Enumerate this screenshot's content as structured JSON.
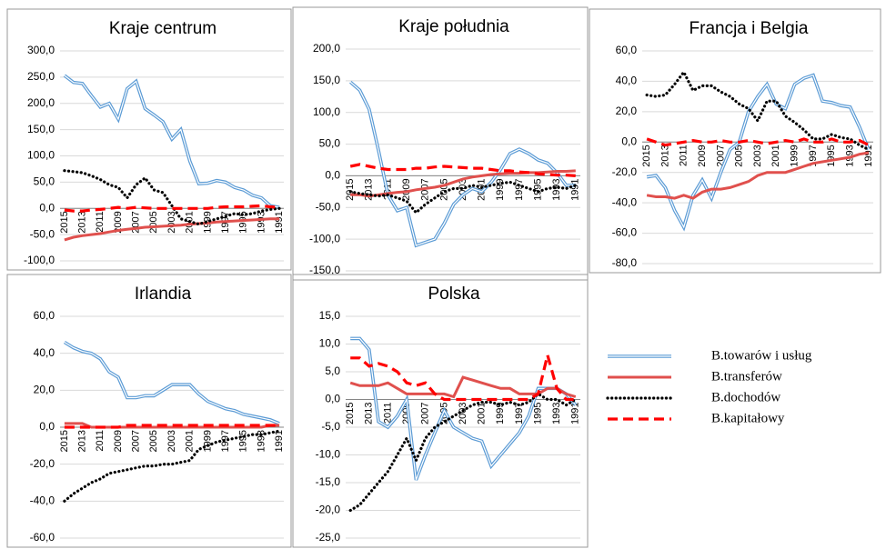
{
  "chart_data": [
    {
      "type": "line",
      "title": "Kraje centrum",
      "categories": [
        "2015",
        null,
        "2013",
        null,
        "2011",
        null,
        "2009",
        null,
        "2007",
        null,
        "2005",
        null,
        "2003",
        null,
        "2001",
        null,
        "1999",
        null,
        "1997",
        null,
        "1995",
        null,
        "1993",
        null,
        "1991"
      ],
      "ylim": [
        -100,
        300
      ],
      "yticks": [
        {
          "value": -100,
          "label": "-100,0"
        },
        {
          "value": -50,
          "label": "-50,0"
        },
        {
          "value": 0,
          "label": "0,0"
        },
        {
          "value": 50,
          "label": "50,0"
        },
        {
          "value": 100,
          "label": "100,0"
        },
        {
          "value": 150,
          "label": "150,0"
        },
        {
          "value": 200,
          "label": "200,0"
        },
        {
          "value": 250,
          "label": "250,0"
        },
        {
          "value": 300,
          "label": "300,0"
        }
      ],
      "grid": true,
      "series": [
        {
          "name": "B.towarów i usług",
          "color": "#5b9bd5",
          "line_style": "double",
          "values": [
            253,
            240,
            238,
            215,
            193,
            200,
            170,
            228,
            242,
            190,
            178,
            165,
            132,
            150,
            90,
            47,
            48,
            53,
            50,
            40,
            35,
            25,
            20,
            5,
            2
          ]
        },
        {
          "name": "B.transferów",
          "color": "#e0504d",
          "line_style": "solid",
          "values": [
            -60,
            -55,
            -52,
            -50,
            -48,
            -45,
            -42,
            -40,
            -38,
            -36,
            -35,
            -34,
            -33,
            -32,
            -30,
            -29,
            -28,
            -26,
            -25,
            -24,
            -23,
            -22,
            -21,
            -20,
            -20
          ]
        },
        {
          "name": "B.dochodów",
          "color": "#000000",
          "line_style": "dotted",
          "values": [
            72,
            70,
            68,
            62,
            55,
            45,
            40,
            20,
            45,
            58,
            35,
            30,
            5,
            -20,
            -25,
            -30,
            -25,
            -20,
            -15,
            -10,
            -12,
            -10,
            -5,
            -2,
            0
          ]
        },
        {
          "name": "B.kapitałowy",
          "color": "#ff0000",
          "line_style": "dashed",
          "values": [
            -3,
            -5,
            -5,
            -3,
            -2,
            0,
            2,
            0,
            2,
            1,
            0,
            0,
            0,
            0,
            0,
            0,
            0,
            2,
            3,
            3,
            3,
            4,
            5,
            3,
            2
          ]
        }
      ]
    },
    {
      "type": "line",
      "title": "Kraje południa",
      "categories": [
        "2015",
        null,
        "2013",
        null,
        "2011",
        null,
        "2009",
        null,
        "2007",
        null,
        "2005",
        null,
        "2003",
        null,
        "2001",
        null,
        "1999",
        null,
        "1997",
        null,
        "1995",
        null,
        "1993",
        null,
        "1991"
      ],
      "ylim": [
        -150,
        200
      ],
      "yticks": [
        {
          "value": -150,
          "label": "-150,0"
        },
        {
          "value": -100,
          "label": "-100,0"
        },
        {
          "value": -50,
          "label": "-50,0"
        },
        {
          "value": 0,
          "label": "0,0"
        },
        {
          "value": 50,
          "label": "50,0"
        },
        {
          "value": 100,
          "label": "100,0"
        },
        {
          "value": 150,
          "label": "150,0"
        },
        {
          "value": 200,
          "label": "200,0"
        }
      ],
      "grid": true,
      "series": [
        {
          "color": "#5b9bd5",
          "line_style": "double",
          "values": [
            148,
            135,
            105,
            40,
            -30,
            -55,
            -50,
            -110,
            -105,
            -100,
            -75,
            -45,
            -30,
            -20,
            -25,
            -10,
            10,
            35,
            42,
            35,
            25,
            20,
            5,
            -15,
            -15
          ]
        },
        {
          "color": "#e0504d",
          "line_style": "solid",
          "values": [
            -30,
            -30,
            -32,
            -30,
            -28,
            -26,
            -25,
            -22,
            -20,
            -18,
            -15,
            -10,
            -5,
            -2,
            0,
            2,
            3,
            4,
            4,
            5,
            5,
            6,
            7,
            7,
            8
          ]
        },
        {
          "color": "#000000",
          "line_style": "dotted",
          "values": [
            -25,
            -28,
            -30,
            -32,
            -30,
            -35,
            -40,
            -58,
            -45,
            -35,
            -25,
            -20,
            -20,
            -15,
            -18,
            -15,
            -12,
            -10,
            -15,
            -20,
            -25,
            -20,
            -18,
            -20,
            -15
          ]
        },
        {
          "color": "#ff0000",
          "line_style": "dashed",
          "values": [
            15,
            18,
            15,
            12,
            10,
            10,
            10,
            12,
            12,
            14,
            15,
            14,
            13,
            12,
            12,
            10,
            8,
            8,
            6,
            5,
            3,
            2,
            1,
            1,
            0
          ]
        }
      ]
    },
    {
      "type": "line",
      "title": "Francja i Belgia",
      "categories": [
        "2015",
        null,
        "2013",
        null,
        "2011",
        null,
        "2009",
        null,
        "2007",
        null,
        "2005",
        null,
        "2003",
        null,
        "2001",
        null,
        "1999",
        null,
        "1997",
        null,
        "1995",
        null,
        "1993",
        null,
        "1991"
      ],
      "ylim": [
        -80,
        60
      ],
      "yticks": [
        {
          "value": -80,
          "label": "-80,0"
        },
        {
          "value": -60,
          "label": "-60,0"
        },
        {
          "value": -40,
          "label": "-40,0"
        },
        {
          "value": -20,
          "label": "-20,0"
        },
        {
          "value": 0,
          "label": "0,0"
        },
        {
          "value": 20,
          "label": "20,0"
        },
        {
          "value": 40,
          "label": "40,0"
        },
        {
          "value": 60,
          "label": "60,0"
        }
      ],
      "grid": true,
      "series": [
        {
          "color": "#5b9bd5",
          "line_style": "double",
          "values": [
            -23,
            -22,
            -30,
            -45,
            -56,
            -35,
            -25,
            -37,
            -20,
            -5,
            0,
            20,
            30,
            38,
            25,
            22,
            38,
            42,
            44,
            27,
            26,
            24,
            23,
            10,
            -5
          ]
        },
        {
          "color": "#e0504d",
          "line_style": "solid",
          "values": [
            -35,
            -36,
            -36,
            -37,
            -35,
            -37,
            -33,
            -31,
            -31,
            -30,
            -28,
            -26,
            -22,
            -20,
            -20,
            -20,
            -18,
            -16,
            -14,
            -13,
            -12,
            -11,
            -10,
            -8,
            -7
          ]
        },
        {
          "color": "#000000",
          "line_style": "dotted",
          "values": [
            31,
            30,
            31,
            38,
            46,
            34,
            37,
            37,
            33,
            30,
            25,
            22,
            14,
            27,
            27,
            17,
            13,
            8,
            2,
            2,
            5,
            3,
            2,
            -2,
            -5
          ]
        },
        {
          "color": "#ff0000",
          "line_style": "dashed",
          "values": [
            2,
            0,
            -2,
            -1,
            0,
            1,
            0,
            0,
            1,
            0,
            0,
            1,
            0,
            -1,
            0,
            1,
            0,
            2,
            0,
            0,
            2,
            0,
            0,
            1,
            -2
          ]
        }
      ]
    },
    {
      "type": "line",
      "title": "Irlandia",
      "categories": [
        "2015",
        null,
        "2013",
        null,
        "2011",
        null,
        "2009",
        null,
        "2007",
        null,
        "2005",
        null,
        "2003",
        null,
        "2001",
        null,
        "1999",
        null,
        "1997",
        null,
        "1995",
        null,
        "1993",
        null,
        "1991"
      ],
      "ylim": [
        -60,
        60
      ],
      "yticks": [
        {
          "value": -60,
          "label": "-60,0"
        },
        {
          "value": -40,
          "label": "-40,0"
        },
        {
          "value": -20,
          "label": "-20,0"
        },
        {
          "value": 0,
          "label": "0,0"
        },
        {
          "value": 20,
          "label": "20,0"
        },
        {
          "value": 40,
          "label": "40,0"
        },
        {
          "value": 60,
          "label": "60,0"
        }
      ],
      "grid": true,
      "series": [
        {
          "color": "#5b9bd5",
          "line_style": "double",
          "values": [
            46,
            43,
            41,
            40,
            37,
            30,
            27,
            16,
            16,
            17,
            17,
            20,
            23,
            23,
            23,
            18,
            14,
            12,
            10,
            9,
            7,
            6,
            5,
            4,
            2
          ]
        },
        {
          "color": "#e0504d",
          "line_style": "solid",
          "values": [
            2,
            2,
            2,
            0,
            0,
            0,
            0,
            0,
            0,
            0,
            0,
            0,
            0,
            0,
            0,
            0,
            0,
            0,
            0,
            0,
            0,
            0,
            0,
            1,
            1
          ]
        },
        {
          "color": "#000000",
          "line_style": "dotted",
          "values": [
            -40,
            -36,
            -33,
            -30,
            -28,
            -25,
            -24,
            -23,
            -22,
            -21,
            -21,
            -20,
            -20,
            -19,
            -18,
            -12,
            -10,
            -8,
            -7,
            -6,
            -5,
            -4,
            -4,
            -3,
            -2
          ]
        },
        {
          "color": "#ff0000",
          "line_style": "dashed",
          "values": [
            0,
            0,
            0,
            0,
            0,
            0,
            0,
            1,
            1,
            1,
            1,
            1,
            1,
            1,
            1,
            1,
            1,
            1,
            1,
            1,
            1,
            1,
            1,
            1,
            1
          ]
        }
      ]
    },
    {
      "type": "line",
      "title": "Polska",
      "categories": [
        "2015",
        null,
        "2013",
        null,
        "2011",
        null,
        "2009",
        null,
        "2007",
        null,
        "2005",
        null,
        "2003",
        null,
        "2001",
        null,
        "1999",
        null,
        "1997",
        null,
        "1995",
        null,
        "1993",
        null,
        "1991"
      ],
      "ylim": [
        -25,
        15
      ],
      "yticks": [
        {
          "value": -25,
          "label": "-25,0"
        },
        {
          "value": -20,
          "label": "-20,0"
        },
        {
          "value": -15,
          "label": "-15,0"
        },
        {
          "value": -10,
          "label": "-10,0"
        },
        {
          "value": -5,
          "label": "-5,0"
        },
        {
          "value": 0,
          "label": "0,0"
        },
        {
          "value": 5,
          "label": "5,0"
        },
        {
          "value": 10,
          "label": "10,0"
        },
        {
          "value": 15,
          "label": "15,0"
        }
      ],
      "grid": true,
      "series": [
        {
          "color": "#5b9bd5",
          "line_style": "double",
          "values": [
            11,
            11,
            9,
            -4,
            -5,
            -3,
            0,
            -14.5,
            -10,
            -6,
            -2,
            -5,
            -6,
            -7,
            -7.5,
            -12,
            -10,
            -8,
            -6,
            -3,
            2,
            2,
            2,
            1,
            -1
          ]
        },
        {
          "color": "#e0504d",
          "line_style": "solid",
          "values": [
            3,
            2.5,
            2.5,
            2.5,
            3,
            2,
            1,
            1,
            1,
            1,
            1,
            0.5,
            4,
            3.5,
            3,
            2.5,
            2,
            2,
            1,
            1,
            1,
            2,
            2,
            1,
            0.5
          ]
        },
        {
          "color": "#000000",
          "line_style": "dotted",
          "values": [
            -20,
            -19,
            -17,
            -15,
            -13,
            -10,
            -7,
            -11,
            -7,
            -5,
            -4,
            -3,
            -2,
            -1,
            -0.5,
            -0.5,
            -1,
            -0.5,
            -1,
            -0.5,
            1,
            0,
            0,
            -1,
            0
          ]
        },
        {
          "color": "#ff0000",
          "line_style": "dashed",
          "values": [
            7.5,
            7.5,
            6,
            6.5,
            6,
            5,
            3,
            2.5,
            3,
            1,
            0,
            0,
            0,
            0,
            0,
            0,
            0,
            0,
            0,
            0,
            1,
            8,
            2,
            0,
            0
          ]
        }
      ]
    }
  ]
}
